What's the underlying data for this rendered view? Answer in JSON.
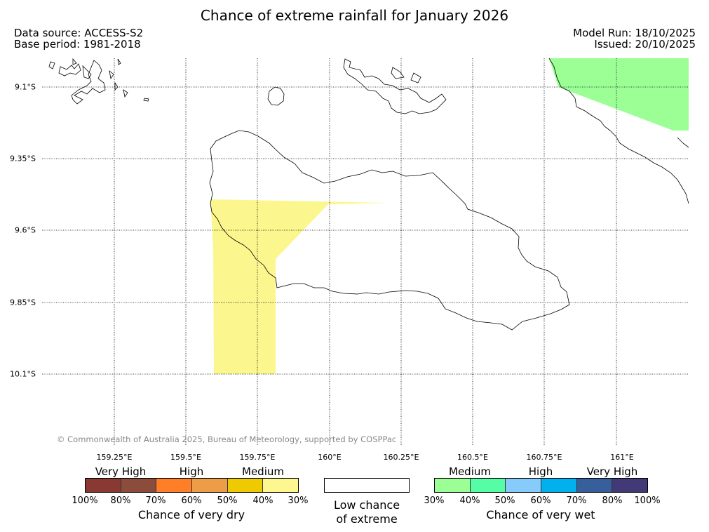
{
  "title": "Chance of extreme rainfall for January 2026",
  "header": {
    "data_source": "Data source: ACCESS-S2",
    "base_period": "Base period: 1981-2018",
    "model_run": "Model Run: 18/10/2025",
    "issued": "Issued: 20/10/2025"
  },
  "map": {
    "region": "Guadalcanal, Solomon Islands",
    "lon_ticks": [
      "159.25°E",
      "159.5°E",
      "159.75°E",
      "160°E",
      "160.25°E",
      "160.5°E",
      "160.75°E",
      "161°E"
    ],
    "lat_ticks": [
      "9.1°S",
      "9.35°S",
      "9.6°S",
      "9.85°S",
      "10.1°S"
    ],
    "lon_range": [
      159.0,
      161.25
    ],
    "lat_range": [
      -8.99,
      -10.26
    ],
    "shaded_areas": [
      {
        "category": "dry 30-40%",
        "color": "#fbf68e"
      },
      {
        "category": "wet 30-40%",
        "color": "#9bff96"
      }
    ]
  },
  "copyright": "© Commonwealth of Australia 2025, Bureau of Meteorology, supported by COSPPac",
  "legend": {
    "dry": {
      "categories": [
        "Very High",
        "High",
        "Medium"
      ],
      "colors": [
        "#893932",
        "#8b4c3b",
        "#fe7f27",
        "#ed9c48",
        "#f0ca00",
        "#fef68f"
      ],
      "ticks": [
        "100%",
        "80%",
        "70%",
        "60%",
        "50%",
        "40%",
        "30%"
      ],
      "title": "Chance of very dry"
    },
    "low": {
      "line1": "Low chance",
      "line2": "of extreme"
    },
    "wet": {
      "categories": [
        "Medium",
        "High",
        "Very High"
      ],
      "colors": [
        "#9bff96",
        "#55fea5",
        "#87cbfa",
        "#00b1ee",
        "#365f9b",
        "#423a77"
      ],
      "ticks": [
        "30%",
        "40%",
        "50%",
        "60%",
        "70%",
        "80%",
        "100%"
      ],
      "title": "Chance of very wet"
    }
  }
}
